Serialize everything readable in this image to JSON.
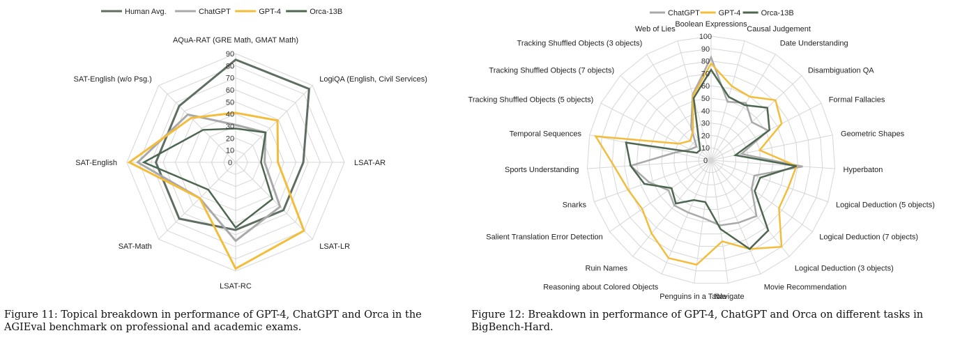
{
  "colors": {
    "Human Avg.": "#5e6e62",
    "ChatGPT": "#a9a9a9",
    "GPT-4": "#f3bd3b",
    "Orca-13B": "#4d6650",
    "grid": "#d6d6d6"
  },
  "captions": {
    "left": "Figure 11: Topical breakdown in performance of GPT-4, ChatGPT and Orca in the AGIEval benchmark on professional and academic exams.",
    "right": "Figure 12: Breakdown in performance of GPT-4, ChatGPT and Orca on different tasks in BigBench-Hard."
  },
  "chart_data": [
    {
      "type": "radar",
      "rmax": 90,
      "ticks": [
        0,
        10,
        20,
        30,
        40,
        50,
        60,
        70,
        80,
        90
      ],
      "grid": true,
      "legend": "top",
      "categories": [
        "AQuA-RAT (GRE Math, GMAT Math)",
        "LogiQA (English, Civil Services)",
        "LSAT-AR",
        "LSAT-LR",
        "LSAT-RC",
        "SAT-Math",
        "SAT-English",
        "SAT-English (w/o Psg.)"
      ],
      "series": [
        {
          "name": "Human Avg.",
          "values": [
            85,
            86,
            56,
            56,
            56,
            66,
            66,
            66
          ]
        },
        {
          "name": "ChatGPT",
          "values": [
            31,
            35,
            24,
            52,
            65,
            42,
            81,
            56
          ]
        },
        {
          "name": "GPT-4",
          "values": [
            41,
            49,
            35,
            80,
            88,
            42,
            88,
            52
          ]
        },
        {
          "name": "Orca-13B",
          "values": [
            28,
            35,
            21,
            43,
            54,
            32,
            76,
            38
          ]
        }
      ]
    },
    {
      "type": "radar",
      "rmax": 100,
      "ticks": [
        0,
        10,
        20,
        30,
        40,
        50,
        60,
        70,
        80,
        90,
        100
      ],
      "grid": true,
      "legend": "top",
      "categories": [
        "Boolean Expressions",
        "Causal Judgement",
        "Date Understanding",
        "Disambiguation QA",
        "Formal Fallacies",
        "Geometric Shapes",
        "Hyperbaton",
        "Logical Deduction (5 objects)",
        "Logical Deduction (7 objects)",
        "Logical Deduction (3 objects)",
        "Movie Recommendation",
        "Navigate",
        "Penguins in a Table",
        "Reasoning about Colored Objects",
        "Ruin Names",
        "Salient Translation Error Detection",
        "Snarks",
        "Sports Understanding",
        "Temporal Sequences",
        "Tracking Shuffled Objects (5 objects)",
        "Tracking Shuffled Objects (7 objects)",
        "Tracking Shuffled Objects (3 objects)",
        "Web of Lies"
      ],
      "series": [
        {
          "name": "ChatGPT",
          "values": [
            83,
            49,
            54,
            45,
            52,
            25,
            74,
            37,
            40,
            58,
            55,
            53,
            47,
            46,
            47,
            42,
            53,
            65,
            30,
            19,
            16,
            31,
            55
          ]
        },
        {
          "name": "GPT-4",
          "values": [
            78,
            62,
            60,
            71,
            64,
            40,
            69,
            66,
            67,
            90,
            78,
            66,
            85,
            86,
            76,
            68,
            71,
            78,
            95,
            29,
            23,
            28,
            54
          ]
        },
        {
          "name": "Orca-13B",
          "values": [
            73,
            53,
            52,
            62,
            53,
            20,
            69,
            42,
            43,
            73,
            78,
            56,
            34,
            35,
            45,
            39,
            57,
            65,
            70,
            13,
            12,
            19,
            52
          ]
        }
      ]
    }
  ]
}
